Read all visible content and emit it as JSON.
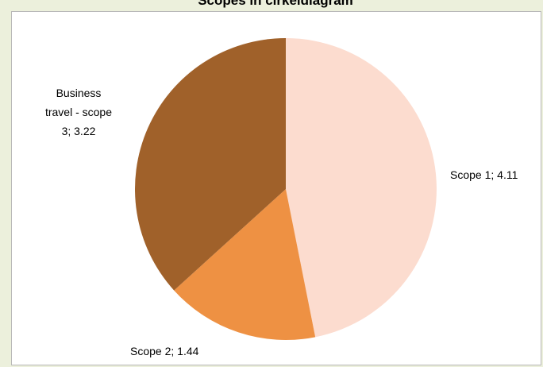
{
  "chart_data": {
    "type": "pie",
    "title": "Scopes in cirkeldiagram",
    "slices": [
      {
        "label": "Scope 1",
        "value": 4.11,
        "data_label": "Scope 1; 4.11",
        "color": "#fcdccf"
      },
      {
        "label": "Scope 2",
        "value": 1.44,
        "data_label": "Scope 2; 1.44",
        "color": "#ee9143"
      },
      {
        "label": "Business travel - scope 3",
        "value": 3.22,
        "data_label_lines": [
          "Business",
          "travel - scope",
          "3; 3.22"
        ],
        "color": "#a0612a"
      }
    ],
    "legend": "none",
    "start_angle_deg": 0,
    "direction": "clockwise"
  }
}
